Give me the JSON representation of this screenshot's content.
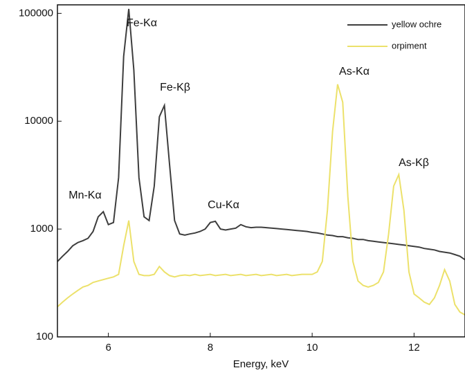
{
  "chart_data": {
    "type": "line",
    "x_label": "Energy, keV",
    "log_y": true,
    "xlim": [
      5,
      13
    ],
    "ylim": [
      100,
      120000
    ],
    "xticks": [
      6,
      8,
      10,
      12
    ],
    "yticks": [
      100,
      1000,
      10000,
      100000
    ],
    "legend": "upper right",
    "annotations": [
      "Fe-Kα",
      "Fe-Kβ",
      "Mn-Kα",
      "Cu-Kα",
      "As-Kα",
      "As-Kβ"
    ],
    "x": [
      5.0,
      5.1,
      5.2,
      5.3,
      5.4,
      5.5,
      5.6,
      5.7,
      5.8,
      5.9,
      6.0,
      6.1,
      6.2,
      6.3,
      6.4,
      6.5,
      6.6,
      6.7,
      6.8,
      6.9,
      7.0,
      7.1,
      7.2,
      7.3,
      7.4,
      7.5,
      7.6,
      7.7,
      7.8,
      7.9,
      8.0,
      8.1,
      8.2,
      8.3,
      8.4,
      8.5,
      8.6,
      8.7,
      8.8,
      8.9,
      9.0,
      9.1,
      9.2,
      9.3,
      9.4,
      9.5,
      9.6,
      9.7,
      9.8,
      9.9,
      10.0,
      10.1,
      10.2,
      10.3,
      10.4,
      10.5,
      10.6,
      10.7,
      10.8,
      10.9,
      11.0,
      11.1,
      11.2,
      11.3,
      11.4,
      11.5,
      11.6,
      11.7,
      11.8,
      11.9,
      12.0,
      12.1,
      12.2,
      12.3,
      12.4,
      12.5,
      12.6,
      12.7,
      12.8,
      12.9,
      13.0
    ],
    "series": [
      {
        "name": "yellow ochre",
        "color": "#3d3d3d",
        "values": [
          500,
          560,
          620,
          700,
          750,
          780,
          820,
          950,
          1300,
          1450,
          1100,
          1150,
          3000,
          40000,
          110000,
          30000,
          3000,
          1300,
          1200,
          2500,
          11000,
          14000,
          4000,
          1200,
          900,
          880,
          900,
          920,
          950,
          1000,
          1150,
          1180,
          1000,
          980,
          1000,
          1020,
          1100,
          1050,
          1030,
          1040,
          1040,
          1030,
          1020,
          1010,
          1000,
          990,
          980,
          970,
          960,
          950,
          930,
          920,
          900,
          880,
          870,
          850,
          850,
          830,
          820,
          800,
          800,
          780,
          770,
          760,
          750,
          740,
          730,
          720,
          710,
          700,
          690,
          680,
          660,
          650,
          640,
          620,
          610,
          600,
          580,
          560,
          520
        ]
      },
      {
        "name": "orpiment",
        "color": "#ece16a",
        "values": [
          190,
          210,
          230,
          250,
          270,
          290,
          300,
          320,
          330,
          340,
          350,
          360,
          380,
          700,
          1200,
          500,
          380,
          370,
          370,
          380,
          450,
          400,
          370,
          360,
          370,
          375,
          370,
          380,
          370,
          375,
          380,
          370,
          375,
          380,
          370,
          375,
          380,
          370,
          375,
          380,
          370,
          375,
          380,
          370,
          375,
          380,
          370,
          375,
          380,
          380,
          380,
          400,
          500,
          1500,
          8000,
          22000,
          15000,
          2000,
          500,
          330,
          300,
          290,
          300,
          320,
          400,
          900,
          2500,
          3200,
          1500,
          400,
          250,
          230,
          210,
          200,
          230,
          300,
          420,
          330,
          200,
          170,
          160
        ]
      }
    ]
  }
}
